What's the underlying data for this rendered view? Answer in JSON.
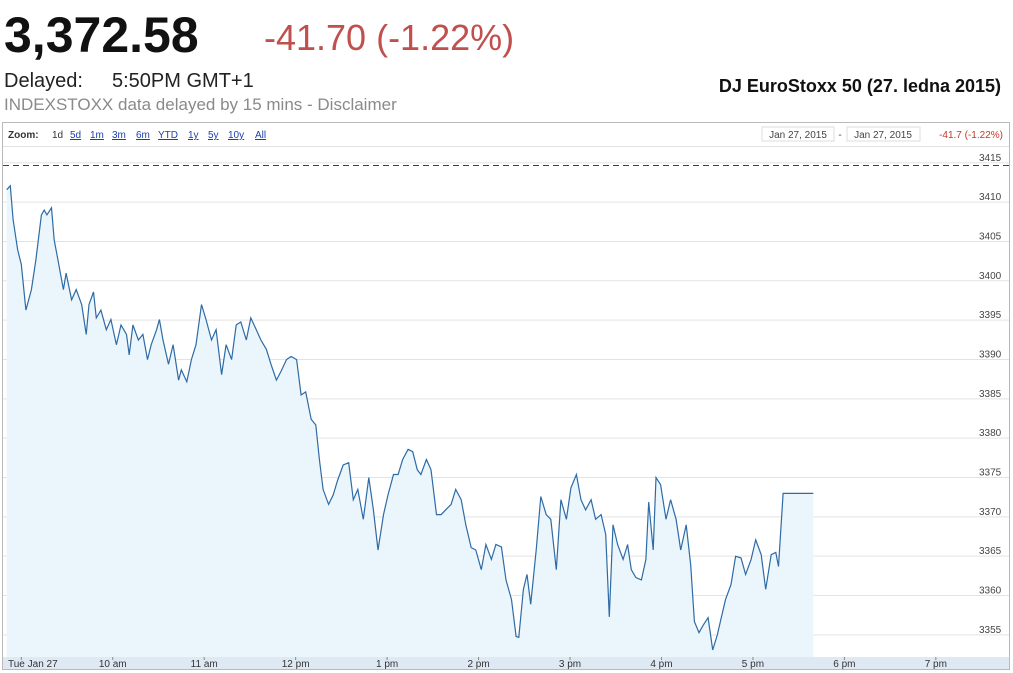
{
  "header": {
    "price": "3,372.58",
    "change": "-41.70 (-1.22%)",
    "delayed_label": "Delayed:",
    "time": "5:50PM GMT+1",
    "source": "INDEXSTOXX data delayed by 15 mins - Disclaimer",
    "caption": "DJ EuroStoxx 50 (27. ledna 2015)"
  },
  "zoom": {
    "label": "Zoom:",
    "options": [
      "1d",
      "5d",
      "1m",
      "3m",
      "6m",
      "YTD",
      "1y",
      "5y",
      "10y",
      "All"
    ],
    "range_start": "Jan 27, 2015",
    "range_separator": "-",
    "range_end": "Jan 27, 2015",
    "range_change": "-41.7 (-1.22%)"
  },
  "chart_data": {
    "type": "area",
    "color": "#2e6ba5",
    "fill": "#eaf5fc",
    "grid": true,
    "previous_close": 3414.28,
    "xlim": [
      8.8,
      19.8
    ],
    "xticks": [
      {
        "value": 9,
        "label": "Tue Jan 27"
      },
      {
        "value": 10,
        "label": "10 am"
      },
      {
        "value": 11,
        "label": "11 am"
      },
      {
        "value": 12,
        "label": "12 pm"
      },
      {
        "value": 13,
        "label": "1 pm"
      },
      {
        "value": 14,
        "label": "2 pm"
      },
      {
        "value": 15,
        "label": "3 pm"
      },
      {
        "value": 16,
        "label": "4 pm"
      },
      {
        "value": 17,
        "label": "5 pm"
      },
      {
        "value": 18,
        "label": "6 pm"
      },
      {
        "value": 19,
        "label": "7 pm"
      }
    ],
    "ylim": [
      3351.8,
      3416.5
    ],
    "yticks": [
      3355,
      3360,
      3365,
      3370,
      3375,
      3380,
      3385,
      3390,
      3395,
      3400,
      3405,
      3410,
      3415
    ],
    "x": [
      8.84,
      8.88,
      8.91,
      8.96,
      9.0,
      9.05,
      9.11,
      9.16,
      9.22,
      9.25,
      9.28,
      9.33,
      9.36,
      9.4,
      9.46,
      9.49,
      9.55,
      9.6,
      9.66,
      9.71,
      9.74,
      9.79,
      9.82,
      9.87,
      9.93,
      9.98,
      10.04,
      10.09,
      10.15,
      10.18,
      10.22,
      10.28,
      10.33,
      10.38,
      10.42,
      10.48,
      10.51,
      10.55,
      10.61,
      10.66,
      10.72,
      10.75,
      10.81,
      10.86,
      10.91,
      10.97,
      11.02,
      11.08,
      11.13,
      11.19,
      11.24,
      11.3,
      11.35,
      11.4,
      11.46,
      11.51,
      11.57,
      11.62,
      11.68,
      11.73,
      11.79,
      11.84,
      11.9,
      11.95,
      12.01,
      12.06,
      12.11,
      12.17,
      12.22,
      12.26,
      12.3,
      12.36,
      12.41,
      12.46,
      12.52,
      12.58,
      12.63,
      12.68,
      12.74,
      12.8,
      12.85,
      12.9,
      12.96,
      13.01,
      13.07,
      13.12,
      13.17,
      13.23,
      13.28,
      13.33,
      13.37,
      13.43,
      13.48,
      13.54,
      13.59,
      13.64,
      13.7,
      13.75,
      13.81,
      13.86,
      13.92,
      13.97,
      14.03,
      14.08,
      14.14,
      14.19,
      14.25,
      14.3,
      14.36,
      14.41,
      14.44,
      14.49,
      14.53,
      14.57,
      14.63,
      14.68,
      14.74,
      14.79,
      14.85,
      14.9,
      14.96,
      15.01,
      15.07,
      15.12,
      15.17,
      15.23,
      15.28,
      15.34,
      15.39,
      15.43,
      15.47,
      15.52,
      15.58,
      15.63,
      15.67,
      15.72,
      15.78,
      15.83,
      15.86,
      15.91,
      15.94,
      15.99,
      16.05,
      16.1,
      16.16,
      16.21,
      16.27,
      16.32,
      16.36,
      16.41,
      16.46,
      16.51,
      16.56,
      16.61,
      16.65,
      16.7,
      16.76,
      16.81,
      16.87,
      16.92,
      16.98,
      17.03,
      17.09,
      17.14,
      17.2,
      17.25,
      17.28,
      17.33,
      17.42,
      17.66
    ],
    "values": [
      3411.2,
      3411.7,
      3407.4,
      3403.6,
      3401.7,
      3395.9,
      3398.5,
      3402.3,
      3408.0,
      3408.6,
      3408.0,
      3408.9,
      3404.8,
      3402.3,
      3398.5,
      3400.6,
      3397.2,
      3398.5,
      3396.6,
      3392.8,
      3396.6,
      3398.2,
      3394.9,
      3395.9,
      3393.4,
      3394.7,
      3391.5,
      3394.0,
      3392.8,
      3390.2,
      3394.0,
      3392.1,
      3392.8,
      3389.6,
      3391.5,
      3393.4,
      3394.7,
      3392.1,
      3389.0,
      3391.5,
      3387.0,
      3388.3,
      3386.8,
      3389.6,
      3391.5,
      3396.6,
      3394.7,
      3392.1,
      3393.4,
      3387.7,
      3391.5,
      3389.6,
      3394.0,
      3394.4,
      3392.1,
      3394.9,
      3393.4,
      3392.1,
      3390.9,
      3389.0,
      3387.0,
      3388.1,
      3389.6,
      3390.0,
      3389.6,
      3385.1,
      3385.5,
      3382.0,
      3381.3,
      3376.9,
      3373.1,
      3371.2,
      3372.4,
      3374.3,
      3376.2,
      3376.5,
      3371.8,
      3373.1,
      3369.3,
      3374.6,
      3370.5,
      3365.4,
      3369.9,
      3372.4,
      3375.0,
      3375.0,
      3376.9,
      3378.2,
      3377.9,
      3375.6,
      3375.0,
      3376.9,
      3375.6,
      3369.9,
      3369.9,
      3370.5,
      3371.2,
      3373.1,
      3371.8,
      3368.6,
      3365.7,
      3365.4,
      3362.9,
      3366.1,
      3364.2,
      3366.1,
      3365.8,
      3361.6,
      3359.1,
      3354.4,
      3354.3,
      3360.4,
      3362.3,
      3358.5,
      3365.4,
      3372.2,
      3369.9,
      3369.3,
      3362.9,
      3371.8,
      3369.3,
      3373.3,
      3375.0,
      3371.8,
      3370.5,
      3371.8,
      3369.3,
      3369.9,
      3367.4,
      3356.9,
      3368.6,
      3366.1,
      3364.2,
      3366.1,
      3362.9,
      3361.9,
      3361.6,
      3364.2,
      3371.5,
      3365.4,
      3374.6,
      3373.7,
      3369.3,
      3371.8,
      3369.3,
      3365.4,
      3368.6,
      3363.5,
      3356.3,
      3354.9,
      3355.9,
      3356.8,
      3352.7,
      3354.6,
      3356.6,
      3359.1,
      3361.0,
      3364.6,
      3364.4,
      3362.3,
      3364.2,
      3366.7,
      3364.8,
      3360.4,
      3364.8,
      3365.1,
      3363.3,
      3372.6,
      3372.6,
      3372.6
    ]
  }
}
